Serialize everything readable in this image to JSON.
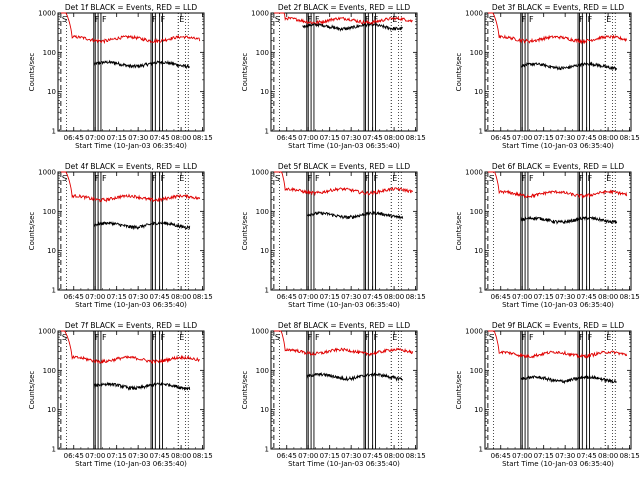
{
  "chart_data": [
    {
      "type": "line",
      "title": "Det 1f BLACK = Events, RED = LLD",
      "xlabel": "Start Time (10-Jan-03 06:35:40)",
      "ylabel": "Counts/sec",
      "yscale": "log",
      "ylim": [
        1,
        1000
      ],
      "y_ticks": [
        "1",
        "10",
        "100",
        "1000"
      ],
      "x_ticks": [
        "06:45",
        "07:00",
        "07:15",
        "07:30",
        "07:45",
        "08:00",
        "08:15"
      ],
      "markers": [
        {
          "t": "06:36",
          "label": "S"
        },
        {
          "t": "06:59",
          "label": "F"
        },
        {
          "t": "07:04",
          "label": "F"
        },
        {
          "t": "07:39",
          "label": "F"
        },
        {
          "t": "07:45",
          "label": "F"
        },
        {
          "t": "07:58",
          "label": "E"
        }
      ],
      "series": [
        {
          "name": "Events",
          "color": "#000000",
          "start": "06:59",
          "end": "08:06",
          "level": 50
        },
        {
          "name": "LLD",
          "color": "#e00000",
          "start": "06:36",
          "end": "08:13",
          "level": 220
        }
      ]
    },
    {
      "type": "line",
      "title": "Det 2f BLACK = Events, RED = LLD",
      "xlabel": "Start Time (10-Jan-03 06:35:40)",
      "ylabel": "Counts/sec",
      "yscale": "log",
      "ylim": [
        1,
        1000
      ],
      "y_ticks": [
        "1",
        "10",
        "100",
        "1000"
      ],
      "x_ticks": [
        "06:45",
        "07:00",
        "07:15",
        "07:30",
        "07:45",
        "08:00",
        "08:15"
      ],
      "markers": [
        {
          "t": "06:36",
          "label": "S"
        },
        {
          "t": "06:59",
          "label": "F"
        },
        {
          "t": "07:04",
          "label": "F"
        },
        {
          "t": "07:39",
          "label": "F"
        },
        {
          "t": "07:45",
          "label": "F"
        },
        {
          "t": "07:58",
          "label": "E"
        }
      ],
      "series": [
        {
          "name": "Events",
          "color": "#000000",
          "start": "06:56",
          "end": "08:06",
          "level": 450
        },
        {
          "name": "LLD",
          "color": "#e00000",
          "start": "06:36",
          "end": "08:13",
          "level": 650
        }
      ]
    },
    {
      "type": "line",
      "title": "Det 3f BLACK = Events, RED = LLD",
      "xlabel": "Start Time (10-Jan-03 06:35:40)",
      "ylabel": "Counts/sec",
      "yscale": "log",
      "ylim": [
        1,
        1000
      ],
      "y_ticks": [
        "1",
        "10",
        "100",
        "1000"
      ],
      "x_ticks": [
        "06:45",
        "07:00",
        "07:15",
        "07:30",
        "07:45",
        "08:00",
        "08:15"
      ],
      "markers": [
        {
          "t": "06:36",
          "label": "S"
        },
        {
          "t": "06:59",
          "label": "F"
        },
        {
          "t": "07:04",
          "label": "F"
        },
        {
          "t": "07:39",
          "label": "F"
        },
        {
          "t": "07:45",
          "label": "F"
        },
        {
          "t": "07:58",
          "label": "E"
        }
      ],
      "series": [
        {
          "name": "Events",
          "color": "#000000",
          "start": "06:59",
          "end": "08:06",
          "level": 45
        },
        {
          "name": "LLD",
          "color": "#e00000",
          "start": "06:36",
          "end": "08:13",
          "level": 220
        }
      ]
    },
    {
      "type": "line",
      "title": "Det 4f BLACK = Events, RED = LLD",
      "xlabel": "Start Time (10-Jan-03 06:35:40)",
      "ylabel": "Counts/sec",
      "yscale": "log",
      "ylim": [
        1,
        1000
      ],
      "y_ticks": [
        "1",
        "10",
        "100",
        "1000"
      ],
      "x_ticks": [
        "06:45",
        "07:00",
        "07:15",
        "07:30",
        "07:45",
        "08:00",
        "08:15"
      ],
      "markers": [
        {
          "t": "06:36",
          "label": "S"
        },
        {
          "t": "06:59",
          "label": "F"
        },
        {
          "t": "07:04",
          "label": "F"
        },
        {
          "t": "07:39",
          "label": "F"
        },
        {
          "t": "07:45",
          "label": "F"
        },
        {
          "t": "07:58",
          "label": "E"
        }
      ],
      "series": [
        {
          "name": "Events",
          "color": "#000000",
          "start": "06:59",
          "end": "08:06",
          "level": 45
        },
        {
          "name": "LLD",
          "color": "#e00000",
          "start": "06:36",
          "end": "08:13",
          "level": 220
        }
      ]
    },
    {
      "type": "line",
      "title": "Det 5f BLACK = Events, RED = LLD",
      "xlabel": "Start Time (10-Jan-03 06:35:40)",
      "ylabel": "Counts/sec",
      "yscale": "log",
      "ylim": [
        1,
        1000
      ],
      "y_ticks": [
        "1",
        "10",
        "100",
        "1000"
      ],
      "x_ticks": [
        "06:45",
        "07:00",
        "07:15",
        "07:30",
        "07:45",
        "08:00",
        "08:15"
      ],
      "markers": [
        {
          "t": "06:36",
          "label": "S"
        },
        {
          "t": "06:59",
          "label": "F"
        },
        {
          "t": "07:04",
          "label": "F"
        },
        {
          "t": "07:39",
          "label": "F"
        },
        {
          "t": "07:45",
          "label": "F"
        },
        {
          "t": "07:58",
          "label": "E"
        }
      ],
      "series": [
        {
          "name": "Events",
          "color": "#000000",
          "start": "06:59",
          "end": "08:06",
          "level": 80
        },
        {
          "name": "LLD",
          "color": "#e00000",
          "start": "06:36",
          "end": "08:13",
          "level": 330
        }
      ]
    },
    {
      "type": "line",
      "title": "Det 6f BLACK = Events, RED = LLD",
      "xlabel": "Start Time (10-Jan-03 06:35:40)",
      "ylabel": "Counts/sec",
      "yscale": "log",
      "ylim": [
        1,
        1000
      ],
      "y_ticks": [
        "1",
        "10",
        "100",
        "1000"
      ],
      "x_ticks": [
        "06:45",
        "07:00",
        "07:15",
        "07:30",
        "07:45",
        "08:00",
        "08:15"
      ],
      "markers": [
        {
          "t": "06:36",
          "label": "S"
        },
        {
          "t": "06:59",
          "label": "F"
        },
        {
          "t": "07:04",
          "label": "F"
        },
        {
          "t": "07:39",
          "label": "F"
        },
        {
          "t": "07:45",
          "label": "F"
        },
        {
          "t": "07:58",
          "label": "E"
        }
      ],
      "series": [
        {
          "name": "Events",
          "color": "#000000",
          "start": "06:59",
          "end": "08:06",
          "level": 60
        },
        {
          "name": "LLD",
          "color": "#e00000",
          "start": "06:36",
          "end": "08:13",
          "level": 280
        }
      ]
    },
    {
      "type": "line",
      "title": "Det 7f BLACK = Events, RED = LLD",
      "xlabel": "Start Time (10-Jan-03 06:35:40)",
      "ylabel": "Counts/sec",
      "yscale": "log",
      "ylim": [
        1,
        1000
      ],
      "y_ticks": [
        "1",
        "10",
        "100",
        "1000"
      ],
      "x_ticks": [
        "06:45",
        "07:00",
        "07:15",
        "07:30",
        "07:45",
        "08:00",
        "08:15"
      ],
      "markers": [
        {
          "t": "06:36",
          "label": "S"
        },
        {
          "t": "06:59",
          "label": "F"
        },
        {
          "t": "07:04",
          "label": "F"
        },
        {
          "t": "07:39",
          "label": "F"
        },
        {
          "t": "07:45",
          "label": "F"
        },
        {
          "t": "07:58",
          "label": "E"
        }
      ],
      "series": [
        {
          "name": "Events",
          "color": "#000000",
          "start": "06:59",
          "end": "08:06",
          "level": 40
        },
        {
          "name": "LLD",
          "color": "#e00000",
          "start": "06:36",
          "end": "08:13",
          "level": 190
        }
      ]
    },
    {
      "type": "line",
      "title": "Det 8f BLACK = Events, RED = LLD",
      "xlabel": "Start Time (10-Jan-03 06:35:40)",
      "ylabel": "Counts/sec",
      "yscale": "log",
      "ylim": [
        1,
        1000
      ],
      "y_ticks": [
        "1",
        "10",
        "100",
        "1000"
      ],
      "x_ticks": [
        "06:45",
        "07:00",
        "07:15",
        "07:30",
        "07:45",
        "08:00",
        "08:15"
      ],
      "markers": [
        {
          "t": "06:36",
          "label": "S"
        },
        {
          "t": "06:59",
          "label": "F"
        },
        {
          "t": "07:04",
          "label": "F"
        },
        {
          "t": "07:39",
          "label": "F"
        },
        {
          "t": "07:45",
          "label": "F"
        },
        {
          "t": "07:58",
          "label": "E"
        }
      ],
      "series": [
        {
          "name": "Events",
          "color": "#000000",
          "start": "06:59",
          "end": "08:06",
          "level": 70
        },
        {
          "name": "LLD",
          "color": "#e00000",
          "start": "06:36",
          "end": "08:13",
          "level": 300
        }
      ]
    },
    {
      "type": "line",
      "title": "Det 9f BLACK = Events, RED = LLD",
      "xlabel": "Start Time (10-Jan-03 06:35:40)",
      "ylabel": "Counts/sec",
      "yscale": "log",
      "ylim": [
        1,
        1000
      ],
      "y_ticks": [
        "1",
        "10",
        "100",
        "1000"
      ],
      "x_ticks": [
        "06:45",
        "07:00",
        "07:15",
        "07:30",
        "07:45",
        "08:00",
        "08:15"
      ],
      "markers": [
        {
          "t": "06:36",
          "label": "S"
        },
        {
          "t": "06:59",
          "label": "F"
        },
        {
          "t": "07:04",
          "label": "F"
        },
        {
          "t": "07:39",
          "label": "F"
        },
        {
          "t": "07:45",
          "label": "F"
        },
        {
          "t": "07:58",
          "label": "E"
        }
      ],
      "series": [
        {
          "name": "Events",
          "color": "#000000",
          "start": "06:59",
          "end": "08:06",
          "level": 60
        },
        {
          "name": "LLD",
          "color": "#e00000",
          "start": "06:36",
          "end": "08:13",
          "level": 260
        }
      ]
    }
  ]
}
